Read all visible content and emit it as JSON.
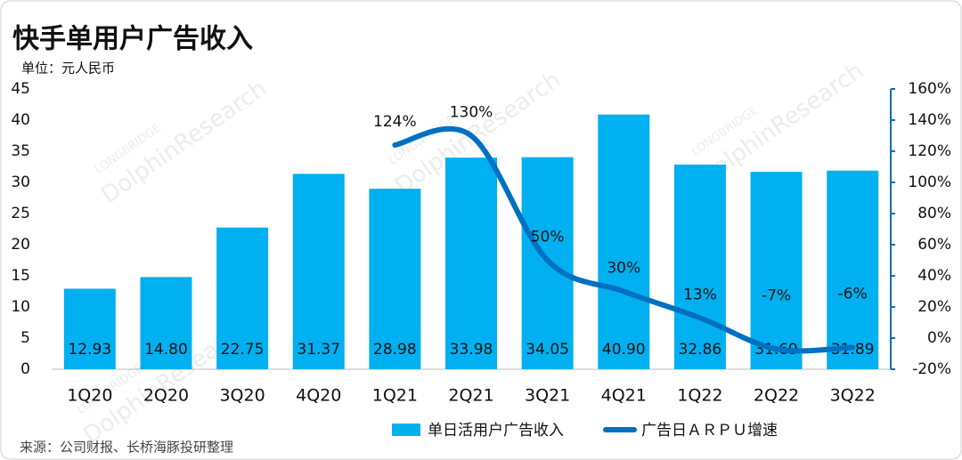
{
  "chart_data": {
    "type": "bar",
    "title": "快手单用户广告收入",
    "subtitle": "单位：元人民币",
    "source": "来源：公司财报、长桥海豚投研整理",
    "watermark": [
      "LONGBRIDGE",
      "DolphinResearch"
    ],
    "categories": [
      "1Q20",
      "2Q20",
      "3Q20",
      "4Q20",
      "1Q21",
      "2Q21",
      "3Q21",
      "4Q21",
      "1Q22",
      "2Q22",
      "3Q22"
    ],
    "series": [
      {
        "name": "单日活用户广告收入",
        "color": "#00b0f0",
        "type": "bar",
        "values": [
          12.93,
          14.8,
          22.75,
          31.37,
          28.98,
          33.98,
          34.05,
          40.9,
          32.86,
          31.69,
          31.89
        ],
        "value_labels": [
          "12.93",
          "14.80",
          "22.75",
          "31.37",
          "28.98",
          "33.98",
          "34.05",
          "40.90",
          "32.86",
          "31.69",
          "31.89"
        ]
      },
      {
        "name": "广告日ＡＲＰＵ增速",
        "color": "#0070c0",
        "type": "line",
        "axis": "y2",
        "values": [
          null,
          null,
          null,
          null,
          124,
          130,
          50,
          30,
          13,
          -7,
          -6
        ],
        "value_labels": [
          null,
          null,
          null,
          null,
          "124%",
          "130%",
          "50%",
          "30%",
          "13%",
          "-7%",
          "-6%"
        ]
      }
    ],
    "ylim": [
      0,
      45
    ],
    "yticks": [
      0,
      5,
      10,
      15,
      20,
      25,
      30,
      35,
      40,
      45
    ],
    "y2lim": [
      -20,
      160
    ],
    "y2ticks": [
      {
        "value": -20,
        "label": "-20%"
      },
      {
        "value": 0,
        "label": "0%"
      },
      {
        "value": 20,
        "label": "20%"
      },
      {
        "value": 40,
        "label": "40%"
      },
      {
        "value": 60,
        "label": "60%"
      },
      {
        "value": 80,
        "label": "80%"
      },
      {
        "value": 100,
        "label": "100%"
      },
      {
        "value": 120,
        "label": "120%"
      },
      {
        "value": 140,
        "label": "140%"
      },
      {
        "value": 160,
        "label": "160%"
      }
    ],
    "grid": false,
    "legend": "bottom"
  }
}
